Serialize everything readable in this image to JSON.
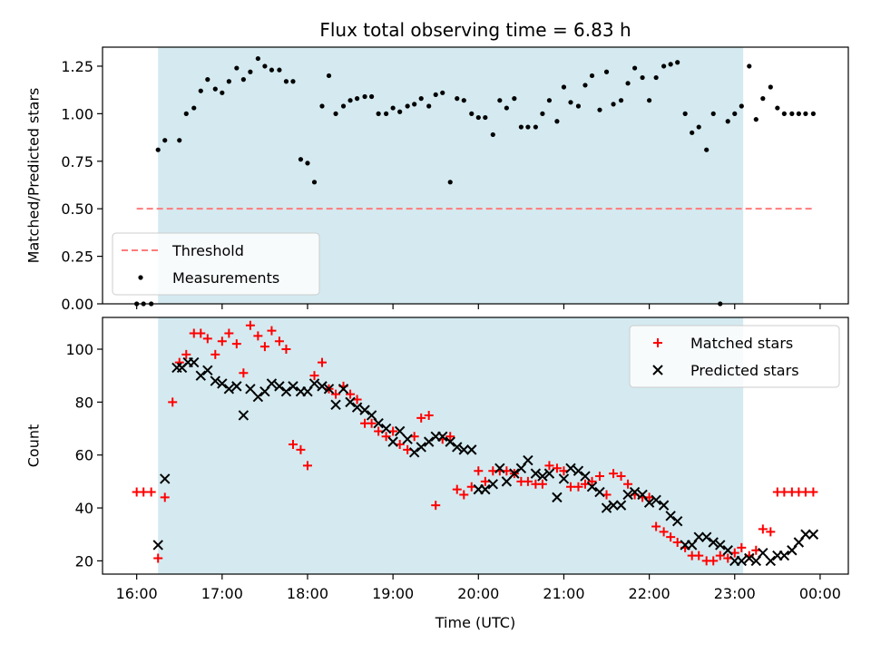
{
  "figure_title": "Flux total observing time = 6.83 h",
  "chart_data": [
    {
      "type": "scatter",
      "panel": "top",
      "ylabel": "Matched/Predicted stars",
      "xlabel": "",
      "xlim": [
        15.6,
        24.33
      ],
      "ylim": [
        0,
        1.35
      ],
      "yticks": [
        0,
        0.25,
        0.5,
        0.75,
        1.0,
        1.25
      ],
      "ytick_labels": [
        "0.00",
        "0.25",
        "0.50",
        "0.75",
        "1.00",
        "1.25"
      ],
      "shaded_span": [
        16.25,
        23.1
      ],
      "shade_color": "#d4eaf0",
      "legend_placement": "lower-left",
      "series": [
        {
          "name": "Threshold",
          "kind": "hline",
          "color": "#ff7b7b",
          "value": 0.5,
          "x_range": [
            16.0,
            23.92
          ]
        },
        {
          "name": "Measurements",
          "kind": "points",
          "color": "#000000",
          "x": [
            16.0,
            16.08,
            16.17,
            16.25,
            16.33,
            16.5,
            16.58,
            16.67,
            16.75,
            16.83,
            16.92,
            17.0,
            17.08,
            17.17,
            17.25,
            17.33,
            17.42,
            17.5,
            17.58,
            17.67,
            17.75,
            17.83,
            17.92,
            18.0,
            18.08,
            18.17,
            18.25,
            18.33,
            18.42,
            18.5,
            18.58,
            18.67,
            18.75,
            18.83,
            18.92,
            19.0,
            19.08,
            19.17,
            19.25,
            19.33,
            19.42,
            19.5,
            19.58,
            19.67,
            19.75,
            19.83,
            19.92,
            20.0,
            20.08,
            20.17,
            20.25,
            20.33,
            20.42,
            20.5,
            20.58,
            20.67,
            20.75,
            20.83,
            20.92,
            21.0,
            21.08,
            21.17,
            21.25,
            21.33,
            21.42,
            21.5,
            21.58,
            21.67,
            21.75,
            21.83,
            21.92,
            22.0,
            22.08,
            22.17,
            22.25,
            22.33,
            22.42,
            22.5,
            22.58,
            22.67,
            22.75,
            22.83,
            22.92,
            23.0,
            23.08,
            23.17,
            23.25,
            23.33,
            23.42,
            23.5,
            23.58,
            23.67,
            23.75,
            23.83,
            23.92
          ],
          "y": [
            0.0,
            0.0,
            0.0,
            0.81,
            0.86,
            0.86,
            1.0,
            1.03,
            1.12,
            1.18,
            1.13,
            1.11,
            1.17,
            1.24,
            1.18,
            1.22,
            1.29,
            1.25,
            1.23,
            1.23,
            1.17,
            1.17,
            0.76,
            0.74,
            0.64,
            1.04,
            1.2,
            1.0,
            1.04,
            1.07,
            1.08,
            1.09,
            1.09,
            1.0,
            1.0,
            1.03,
            1.01,
            1.04,
            1.05,
            1.08,
            1.04,
            1.1,
            1.11,
            0.64,
            1.08,
            1.07,
            1.0,
            0.98,
            0.98,
            0.89,
            1.07,
            1.03,
            1.08,
            0.93,
            0.93,
            0.93,
            1.0,
            1.07,
            0.96,
            1.14,
            1.06,
            1.04,
            1.15,
            1.2,
            1.02,
            1.22,
            1.05,
            1.07,
            1.16,
            1.24,
            1.19,
            1.07,
            1.19,
            1.25,
            1.26,
            1.27,
            1.0,
            0.9,
            0.93,
            0.81,
            1.0,
            0.0,
            0.96,
            1.0,
            1.04,
            1.25,
            0.97,
            1.08,
            1.14,
            1.03,
            1.0,
            1.0,
            1.0,
            1.0,
            1.0
          ]
        }
      ]
    },
    {
      "type": "scatter",
      "panel": "bottom",
      "ylabel": "Count",
      "xlabel": "Time (UTC)",
      "xlim": [
        15.6,
        24.33
      ],
      "ylim": [
        15,
        112
      ],
      "yticks": [
        20,
        40,
        60,
        80,
        100
      ],
      "ytick_labels": [
        "20",
        "40",
        "60",
        "80",
        "100"
      ],
      "xticks": [
        16,
        17,
        18,
        19,
        20,
        21,
        22,
        23,
        24
      ],
      "xtick_labels": [
        "16:00",
        "17:00",
        "18:00",
        "19:00",
        "20:00",
        "21:00",
        "22:00",
        "23:00",
        "00:00"
      ],
      "shaded_span": [
        16.25,
        23.1
      ],
      "shade_color": "#d4eaf0",
      "legend_placement": "top-right",
      "series": [
        {
          "name": "Matched stars",
          "kind": "plus",
          "color": "#ff0000",
          "x": [
            16.0,
            16.08,
            16.17,
            16.25,
            16.33,
            16.42,
            16.5,
            16.58,
            16.67,
            16.75,
            16.83,
            16.92,
            17.0,
            17.08,
            17.17,
            17.25,
            17.33,
            17.42,
            17.5,
            17.58,
            17.67,
            17.75,
            17.83,
            17.92,
            18.0,
            18.08,
            18.17,
            18.25,
            18.33,
            18.42,
            18.5,
            18.58,
            18.67,
            18.75,
            18.83,
            18.92,
            19.0,
            19.08,
            19.17,
            19.25,
            19.33,
            19.42,
            19.5,
            19.58,
            19.67,
            19.75,
            19.83,
            19.92,
            20.0,
            20.08,
            20.17,
            20.25,
            20.33,
            20.42,
            20.5,
            20.58,
            20.67,
            20.75,
            20.83,
            20.92,
            21.0,
            21.08,
            21.17,
            21.25,
            21.33,
            21.42,
            21.5,
            21.58,
            21.67,
            21.75,
            21.83,
            21.92,
            22.0,
            22.08,
            22.17,
            22.25,
            22.33,
            22.42,
            22.5,
            22.58,
            22.67,
            22.75,
            22.83,
            22.92,
            23.0,
            23.08,
            23.17,
            23.25,
            23.33,
            23.42,
            23.5,
            23.58,
            23.67,
            23.75,
            23.83,
            23.92
          ],
          "y": [
            46,
            46,
            46,
            21,
            44,
            80,
            95,
            98,
            106,
            106,
            104,
            98,
            103,
            106,
            102,
            91,
            109,
            105,
            101,
            107,
            103,
            100,
            64,
            62,
            56,
            90,
            95,
            85,
            83,
            86,
            83,
            81,
            72,
            72,
            69,
            67,
            69,
            64,
            62,
            67,
            74,
            75,
            41,
            66,
            67,
            47,
            45,
            48,
            54,
            50,
            54,
            54,
            54,
            53,
            50,
            50,
            49,
            49,
            56,
            55,
            54,
            48,
            48,
            49,
            50,
            52,
            45,
            53,
            52,
            49,
            45,
            44,
            44,
            33,
            31,
            29,
            27,
            25,
            22,
            22,
            20,
            20,
            22,
            21,
            23,
            25,
            22,
            24,
            32,
            31,
            46,
            46,
            46,
            46,
            46,
            46
          ],
          "note": ""
        },
        {
          "name": "Predicted stars",
          "kind": "cross",
          "color": "#000000",
          "x": [
            16.25,
            16.33,
            16.47,
            16.53,
            16.6,
            16.67,
            16.75,
            16.83,
            16.92,
            17.0,
            17.08,
            17.17,
            17.25,
            17.33,
            17.42,
            17.5,
            17.58,
            17.67,
            17.75,
            17.83,
            17.92,
            18.0,
            18.08,
            18.17,
            18.25,
            18.33,
            18.42,
            18.5,
            18.58,
            18.67,
            18.75,
            18.83,
            18.92,
            19.0,
            19.08,
            19.17,
            19.25,
            19.33,
            19.42,
            19.5,
            19.58,
            19.67,
            19.75,
            19.83,
            19.92,
            20.0,
            20.08,
            20.17,
            20.25,
            20.33,
            20.42,
            20.5,
            20.58,
            20.67,
            20.75,
            20.83,
            20.92,
            21.0,
            21.08,
            21.17,
            21.25,
            21.33,
            21.42,
            21.5,
            21.58,
            21.67,
            21.75,
            21.83,
            21.92,
            22.0,
            22.08,
            22.17,
            22.25,
            22.33,
            22.42,
            22.5,
            22.58,
            22.67,
            22.75,
            22.83,
            22.92,
            23.0,
            23.08,
            23.17,
            23.25,
            23.33,
            23.42,
            23.5,
            23.58,
            23.67,
            23.75,
            23.83,
            23.92
          ],
          "y": [
            26,
            51,
            93,
            93,
            95,
            95,
            90,
            92,
            88,
            87,
            85,
            86,
            75,
            85,
            82,
            84,
            87,
            86,
            84,
            86,
            84,
            84,
            87,
            86,
            85,
            79,
            85,
            80,
            78,
            77,
            75,
            72,
            70,
            65,
            69,
            66,
            61,
            63,
            65,
            67,
            67,
            65,
            63,
            62,
            62,
            47,
            47,
            49,
            55,
            50,
            53,
            55,
            58,
            53,
            52,
            53,
            44,
            51,
            55,
            54,
            52,
            48,
            46,
            40,
            41,
            41,
            45,
            46,
            45,
            42,
            43,
            41,
            37,
            35,
            26,
            26,
            29,
            29,
            27,
            26,
            24,
            20,
            20,
            21,
            20,
            23,
            20,
            22,
            22,
            24,
            27,
            30,
            30
          ]
        }
      ]
    }
  ]
}
